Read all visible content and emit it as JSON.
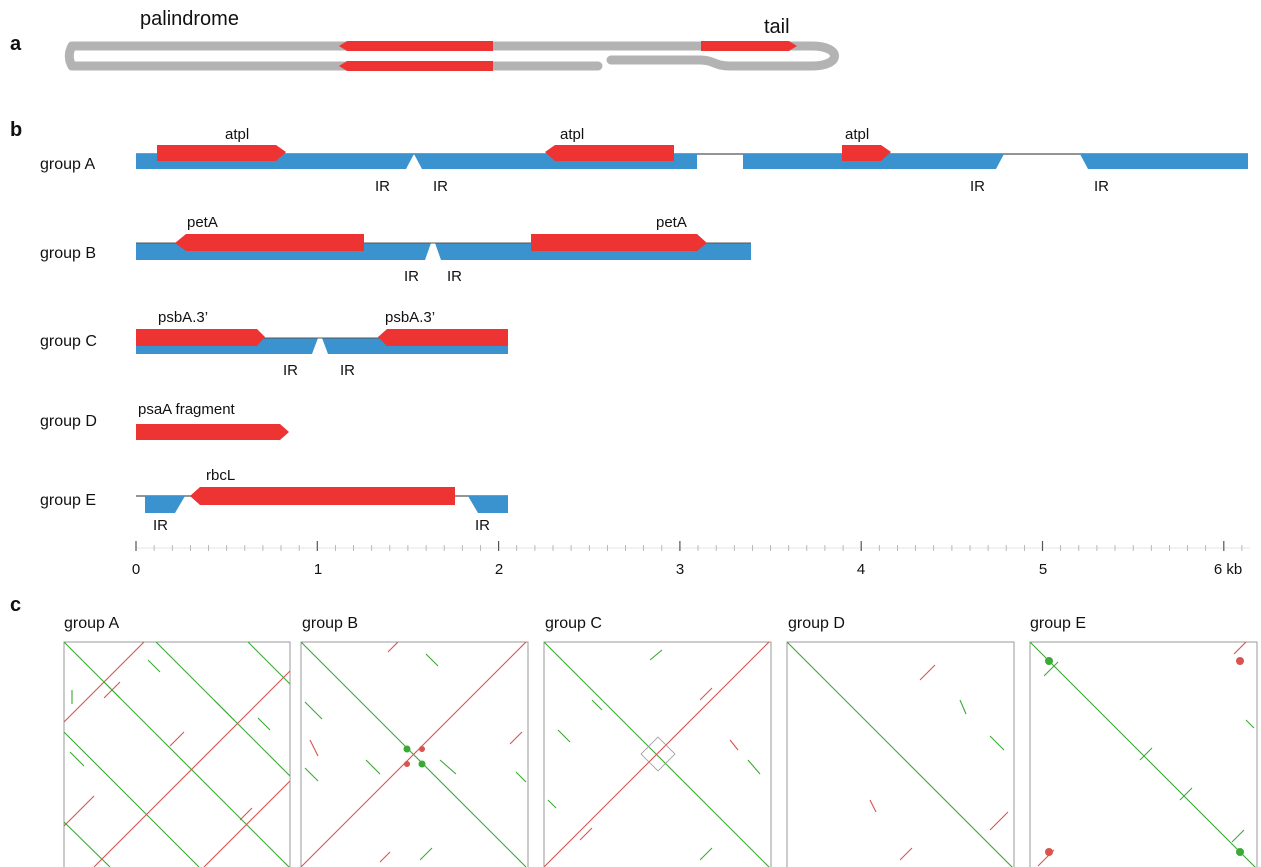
{
  "panels": {
    "a": "a",
    "b": "b",
    "c": "c"
  },
  "hairpin": {
    "left_label": "palindrome",
    "right_label": "tail",
    "colors": {
      "backbone": "#b3b3b3",
      "gene": "#ee3333"
    }
  },
  "scale": {
    "ticks": [
      "0",
      "1",
      "2",
      "3",
      "4",
      "5",
      "6 kb"
    ]
  },
  "ir_label": "IR",
  "groups": [
    {
      "label": "group A",
      "genes": [
        {
          "label": "atpl",
          "start": 0.12,
          "end": 0.82,
          "dir": "right"
        },
        {
          "label": "atpl",
          "start": 2.25,
          "end": 2.97,
          "dir": "left"
        },
        {
          "label": "atpl",
          "start": 3.9,
          "end": 4.17,
          "dir": "right"
        }
      ],
      "ir": [
        {
          "x": 1.44
        },
        {
          "x": 1.67
        },
        {
          "x": 4.63
        },
        {
          "x": 5.23
        }
      ]
    },
    {
      "label": "group B",
      "genes": [
        {
          "label": "petA",
          "start": 0.2,
          "end": 1.25,
          "dir": "left"
        },
        {
          "label": "petA",
          "start": 2.17,
          "end": 3.14,
          "dir": "right"
        }
      ],
      "ir": [
        {
          "x": 1.45
        },
        {
          "x": 1.71
        }
      ]
    },
    {
      "label": "group C",
      "genes": [
        {
          "label": "psbA.3’",
          "start": 0.0,
          "end": 0.71,
          "dir": "right"
        },
        {
          "label": "psbA.3’",
          "start": 1.33,
          "end": 2.04,
          "dir": "left"
        }
      ],
      "ir": [
        {
          "x": 0.85
        },
        {
          "x": 1.17
        }
      ]
    },
    {
      "label": "group D",
      "genes": [
        {
          "label": "psaA fragment",
          "start": 0.0,
          "end": 0.84,
          "dir": "right"
        }
      ],
      "ir": []
    },
    {
      "label": "group E",
      "genes": [
        {
          "label": "rbcL",
          "start": 0.3,
          "end": 1.74,
          "dir": "left"
        }
      ],
      "ir": [
        {
          "x": 0.1
        },
        {
          "x": 1.92
        }
      ]
    }
  ],
  "dotplots": [
    {
      "title": "group A"
    },
    {
      "title": "group B"
    },
    {
      "title": "group C"
    },
    {
      "title": "group D"
    },
    {
      "title": "group E"
    }
  ],
  "colors": {
    "segment": "#3a93cf",
    "gene": "#ee3333",
    "forward": "#3aaa35",
    "reverse": "#d9534f"
  }
}
